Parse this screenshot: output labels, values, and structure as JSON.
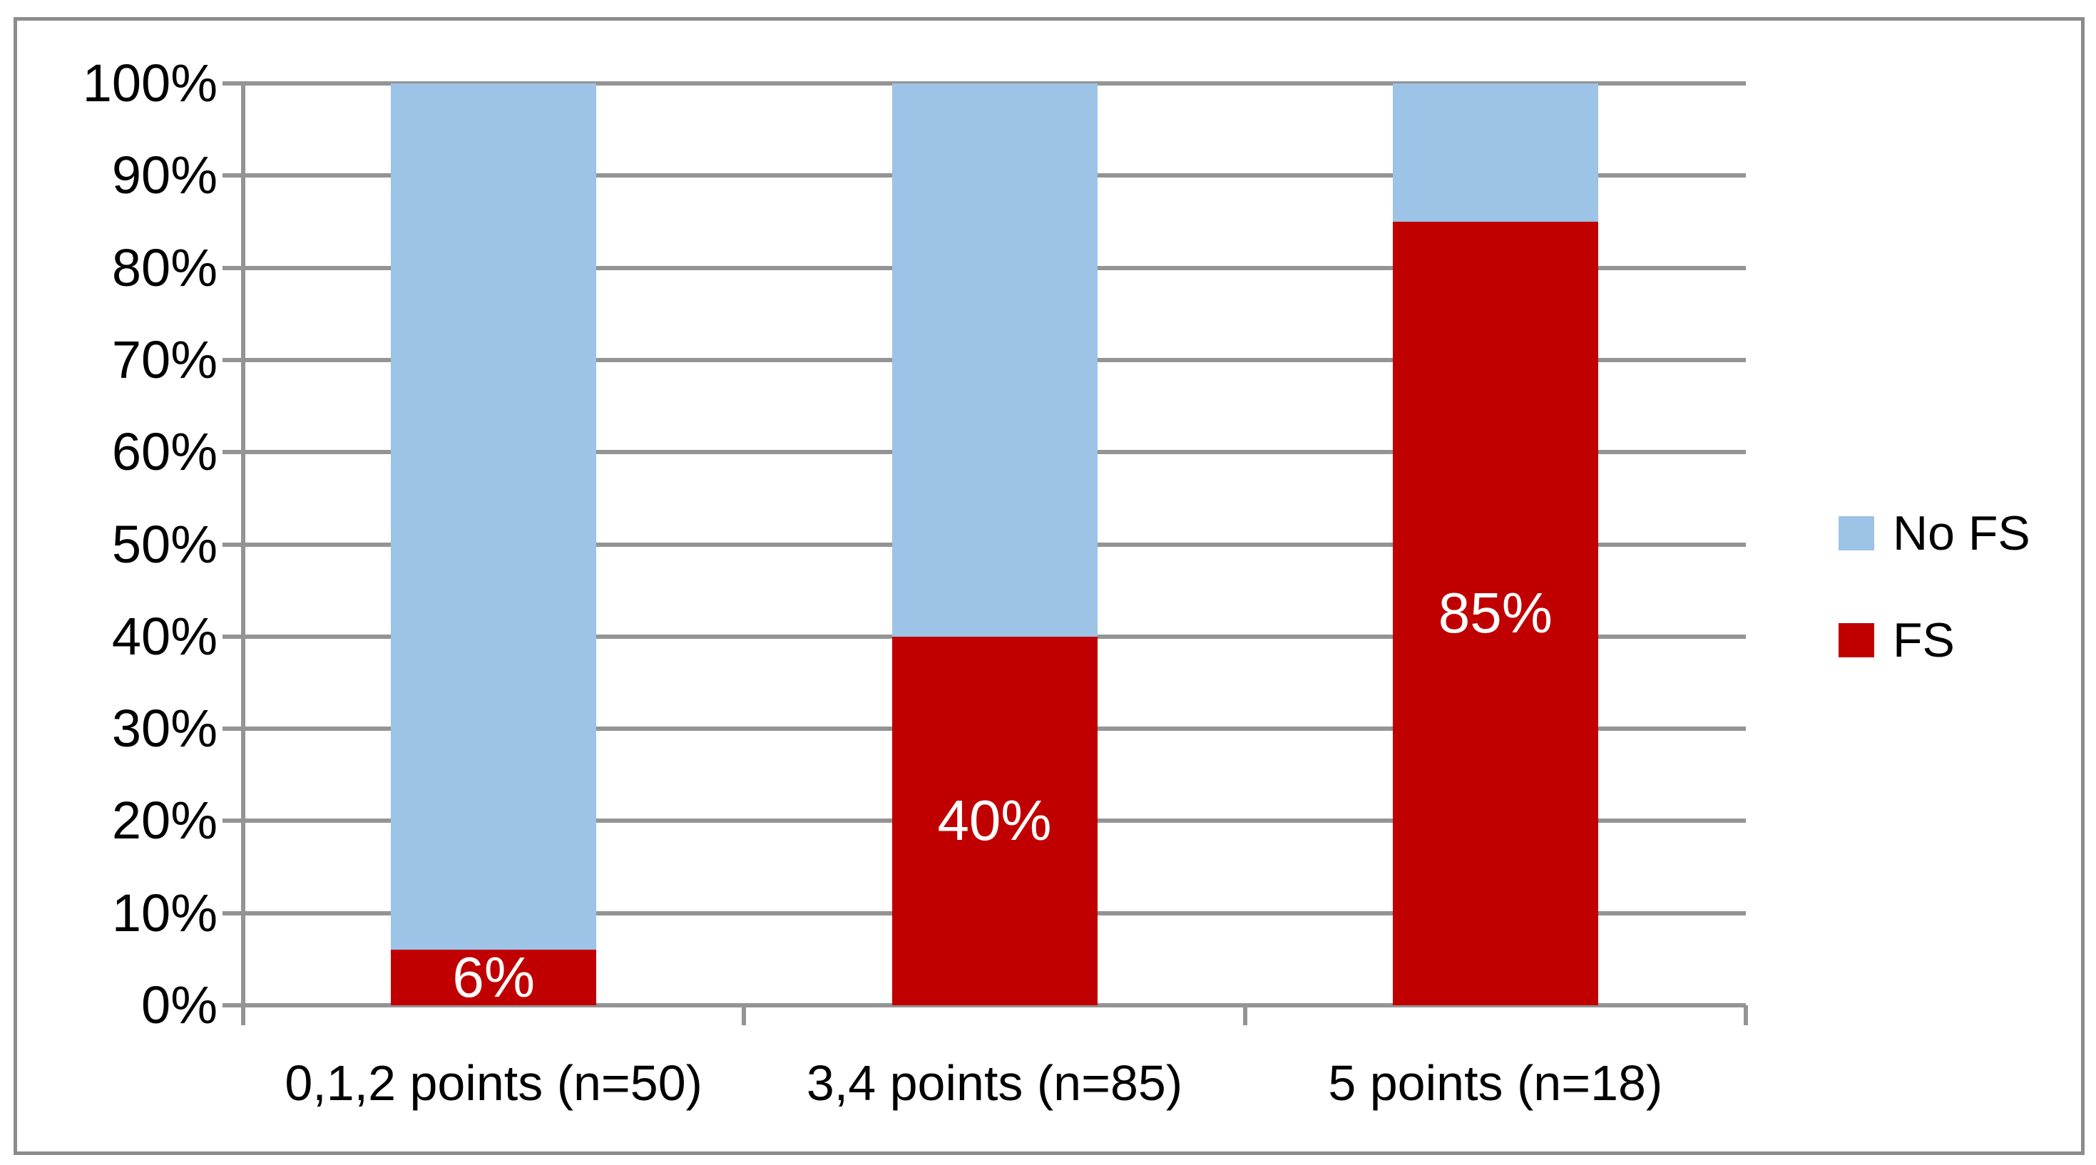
{
  "chart_data": {
    "type": "bar",
    "subtype": "stacked-100-percent-column",
    "title": "",
    "xlabel": "",
    "ylabel": "",
    "grid": true,
    "categories": [
      "0,1,2 points (n=50)",
      "3,4 points (n=85)",
      "5 points (n=18)"
    ],
    "series": [
      {
        "name": "FS",
        "color": "#c00000",
        "values": [
          6,
          40,
          85
        ],
        "data_labels": [
          "6%",
          "40%",
          "85%"
        ],
        "data_label_color": "#ffffff"
      },
      {
        "name": "No FS",
        "color": "#9dc3e6",
        "values": [
          94,
          60,
          15
        ],
        "data_labels": [
          "",
          "",
          ""
        ],
        "data_label_color": "#ffffff"
      }
    ],
    "y_axis": {
      "min": 0,
      "max": 100,
      "tick_step": 10,
      "tick_labels": [
        "0%",
        "10%",
        "20%",
        "30%",
        "40%",
        "50%",
        "60%",
        "70%",
        "80%",
        "90%",
        "100%"
      ]
    },
    "legend": {
      "position": "right",
      "entries": [
        {
          "label": "No FS",
          "color": "#9dc3e6"
        },
        {
          "label": "FS",
          "color": "#c00000"
        }
      ]
    },
    "colors": {
      "gridline": "#949494",
      "axis": "#949494",
      "frame_border": "#8c8c8c",
      "text": "#000000",
      "background": "#ffffff"
    }
  }
}
